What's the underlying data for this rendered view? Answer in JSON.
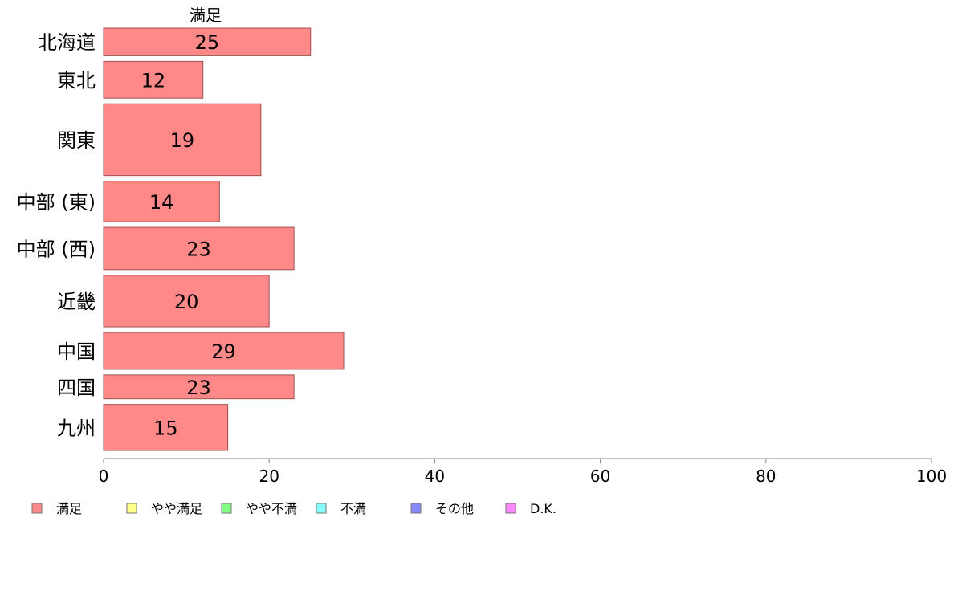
{
  "chart_data": {
    "type": "bar",
    "orientation": "horizontal",
    "stacked": true,
    "title": "",
    "xlabel": "",
    "ylabel": "",
    "xlim": [
      0,
      100
    ],
    "xticks": [
      0,
      20,
      40,
      60,
      80,
      100
    ],
    "grid": false,
    "legend_position": "bottom",
    "series_title_label": "満足",
    "categories": [
      "北海道",
      "東北",
      "関東",
      "中部 (東)",
      "中部 (西)",
      "近畿",
      "中国",
      "四国",
      "九州"
    ],
    "category_weights": [
      30,
      40,
      78,
      44,
      46,
      56,
      40,
      26,
      50
    ],
    "series": [
      {
        "name": "満足",
        "color": "#FF8888",
        "values": [
          25,
          12,
          19,
          14,
          23,
          20,
          29,
          23,
          15
        ]
      }
    ],
    "legend": [
      {
        "label": "満足",
        "color": "#FF8888"
      },
      {
        "label": "やや満足",
        "color": "#FFFF88"
      },
      {
        "label": "やや不満",
        "color": "#88FF88"
      },
      {
        "label": "不満",
        "color": "#88FFFF"
      },
      {
        "label": "その他",
        "color": "#8888FF"
      },
      {
        "label": "D.K.",
        "color": "#FF88FF"
      }
    ]
  }
}
